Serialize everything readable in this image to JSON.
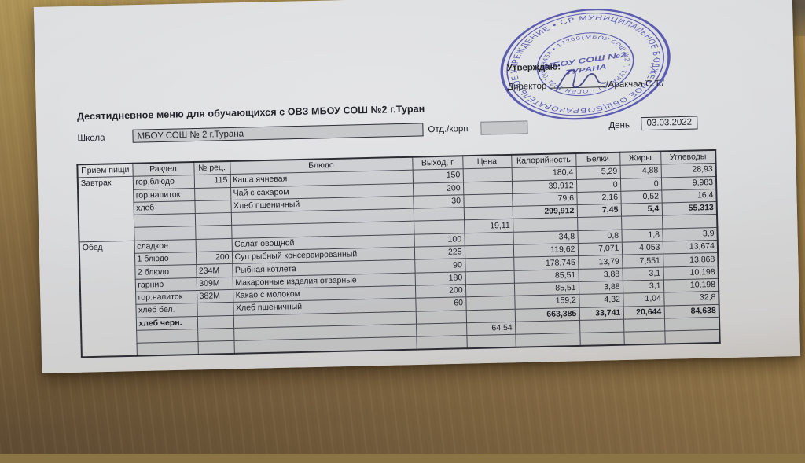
{
  "page": {
    "title": "Десятидневное меню для обучающихся с ОВЗ МБОУ СОШ №2 г.Туран",
    "approval": {
      "approve_label": "Утверждаю:",
      "director_label": "Директор",
      "director_name": "/Аракчаа С.Т./"
    },
    "stamp": {
      "ring_text_outer": "МУНИЦИПАЛЬНОЕ БЮДЖЕТНОЕ ОБЩЕОБРАЗОВАТЕЛЬНОЕ УЧРЕЖДЕНИЕ • СРЕДНЯЯ ОБЩЕОБРАЗОВАТЕЛЬНАЯ ШКОЛА №2 ГОРОДА ТУРАНА • ",
      "ring_text_inner": "(МБОУ СОШ №2 Г. ТУРАНА) • ОГРН 1021700548454 • 1720000395 • ",
      "center_line1": "МБОУ СОШ №2",
      "center_line2": "ТУРАНА",
      "color": "#3e3ea6"
    },
    "fields": {
      "school_label": "Школа",
      "school_value": "МБОУ СОШ № 2 г.Турана",
      "dept_label": "Отд./корп",
      "day_label": "День",
      "date_value": "03.03.2022"
    }
  },
  "table": {
    "headers": [
      "Прием пищи",
      "Раздел",
      "№ рец.",
      "Блюдо",
      "Выход, г",
      "Цена",
      "Калорийность",
      "Белки",
      "Жиры",
      "Углеводы"
    ],
    "rows": [
      {
        "meal": {
          "label": "Завтрак",
          "span": 5
        },
        "cells": [
          "гор.блюдо",
          "115",
          "Каша ячневая",
          "150",
          "",
          "180,4",
          "5,29",
          "4,88",
          "28,93"
        ]
      },
      {
        "cells": [
          "гор.напиток",
          "",
          "Чай с сахаром",
          "200",
          "",
          "39,912",
          "0",
          "0",
          "9,983"
        ]
      },
      {
        "cells": [
          "хлеб",
          "",
          "Хлеб пшеничный",
          "30",
          "",
          "79,6",
          "2,16",
          "0,52",
          "16,4"
        ]
      },
      {
        "bold": true,
        "cells": [
          "",
          "",
          "",
          "",
          "",
          "299,912",
          "7,45",
          "5,4",
          "55,313"
        ]
      },
      {
        "cells": [
          "",
          "",
          "",
          "",
          "19,11",
          "",
          "",
          "",
          ""
        ]
      },
      {
        "meal": {
          "label": "Обед",
          "span": 9
        },
        "cells": [
          "сладкое",
          "",
          "Салат овощной",
          "100",
          "",
          "34,8",
          "0,8",
          "1,8",
          "3,9"
        ]
      },
      {
        "cells": [
          "1 блюдо",
          "200",
          "Суп рыбный консервированный",
          "225",
          "",
          "119,62",
          "7,071",
          "4,053",
          "13,674"
        ]
      },
      {
        "cells": [
          "2 блюдо",
          "234М",
          "Рыбная котлета",
          "90",
          "",
          "178,745",
          "13,79",
          "7,551",
          "13,868"
        ]
      },
      {
        "cells": [
          "гарнир",
          "309М",
          "Макаронные изделия отварные",
          "180",
          "",
          "85,51",
          "3,88",
          "3,1",
          "10,198"
        ]
      },
      {
        "cells": [
          "гор.напиток",
          "382М",
          "Какао с молоком",
          "200",
          "",
          "85,51",
          "3,88",
          "3,1",
          "10,198"
        ]
      },
      {
        "cells": [
          "хлеб бел.",
          "",
          "Хлеб пшеничный",
          "60",
          "",
          "159,2",
          "4,32",
          "1,04",
          "32,8"
        ]
      },
      {
        "bold": true,
        "cells": [
          "хлеб черн.",
          "",
          "",
          "",
          "",
          "663,385",
          "33,741",
          "20,644",
          "84,638"
        ]
      },
      {
        "cells": [
          "",
          "",
          "",
          "",
          "64,54",
          "",
          "",
          "",
          ""
        ]
      },
      {
        "cells": [
          "",
          "",
          "",
          "",
          "",
          "",
          "",
          "",
          ""
        ]
      }
    ]
  }
}
